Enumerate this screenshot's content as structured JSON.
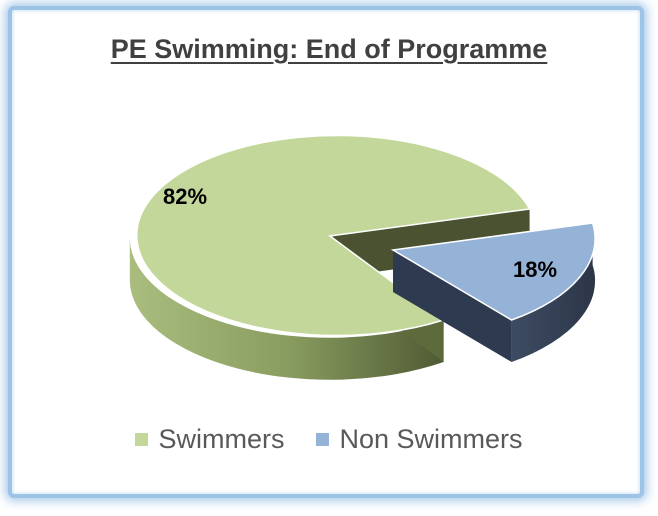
{
  "chart_data": {
    "type": "pie",
    "title": "PE Swimming: End of Programme",
    "series": [
      {
        "categories": [
          "Swimmers",
          "Non Swimmers"
        ],
        "values": [
          82,
          18
        ],
        "labels": [
          "82%",
          "18%"
        ]
      }
    ],
    "colors": {
      "Swimmers": "#c4d79b",
      "Non Swimmers": "#95b3d7"
    },
    "style": "3d-exploded",
    "legend_position": "bottom"
  },
  "legend": {
    "items": [
      {
        "label": "Swimmers",
        "color": "#c4d79b"
      },
      {
        "label": "Non Swimmers",
        "color": "#95b3d7"
      }
    ]
  }
}
